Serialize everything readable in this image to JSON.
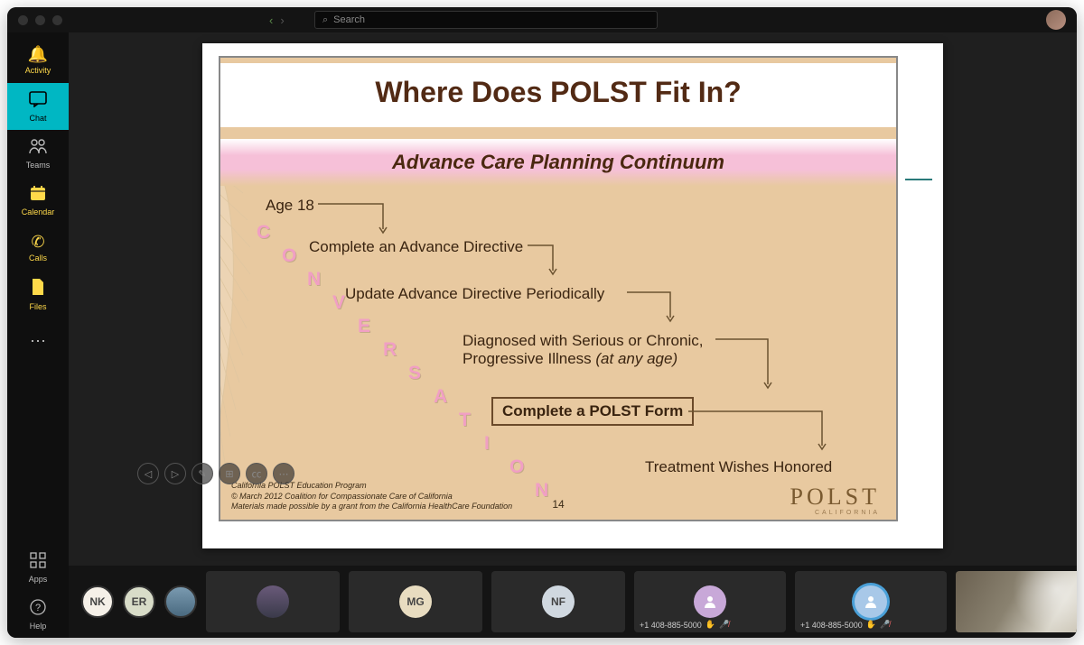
{
  "search": {
    "placeholder": "Search"
  },
  "rail": {
    "items": [
      {
        "name": "activity",
        "label": "Activity",
        "icon": "🔔",
        "highlight": true
      },
      {
        "name": "chat",
        "label": "Chat",
        "icon": "💬",
        "active": true
      },
      {
        "name": "teams",
        "label": "Teams",
        "icon": "👥"
      },
      {
        "name": "calendar",
        "label": "Calendar",
        "icon": "📅"
      },
      {
        "name": "calls",
        "label": "Calls",
        "icon": "📞"
      },
      {
        "name": "files",
        "label": "Files",
        "icon": "📄"
      },
      {
        "name": "more",
        "label": "",
        "icon": "⋯"
      }
    ],
    "bottom": [
      {
        "name": "apps",
        "label": "Apps",
        "icon": "⊞"
      },
      {
        "name": "help",
        "label": "Help",
        "icon": "?"
      }
    ]
  },
  "slide": {
    "title": "Where Does POLST Fit In?",
    "subtitle": "Advance Care Planning Continuum",
    "steps": {
      "s1": "Age 18",
      "s2": "Complete an Advance Directive",
      "s3": "Update Advance Directive Periodically",
      "s4a": "Diagnosed with Serious or Chronic,",
      "s4b": "Progressive Illness ",
      "s4c": "(at any age)",
      "s5": "Complete a POLST Form",
      "s6": "Treatment Wishes Honored"
    },
    "conversation_letters": [
      "C",
      "O",
      "N",
      "V",
      "E",
      "R",
      "S",
      "A",
      "T",
      "I",
      "O",
      "N"
    ],
    "footer": {
      "l1": "California POLST Education Program",
      "l2": "© March 2012 Coalition for Compassionate Care of California",
      "l3": "Materials made possible by a grant from the California HealthCare Foundation"
    },
    "number": "14",
    "brand": "POLST",
    "brand_sub": "CALIFORNIA",
    "colors": {
      "title": "#522a14",
      "body_bg": "#e8c9a0",
      "pink": "#f6c0d8",
      "conv_letter": "#f19fc4",
      "text": "#3a2410"
    }
  },
  "participants": {
    "cluster": [
      {
        "initials": "NK",
        "bg": "#f5f0e8"
      },
      {
        "initials": "ER",
        "bg": "#d8dcc8"
      },
      {
        "initials": "",
        "bg": "#6a8a9a",
        "photo": true
      }
    ],
    "tiles": [
      {
        "type": "photo",
        "label": "",
        "bg": "#3a4a5a"
      },
      {
        "type": "initials",
        "label": "MG",
        "bg": "#e8dcc0"
      },
      {
        "type": "initials",
        "label": "NF",
        "bg": "#d0d8e0"
      },
      {
        "type": "phone",
        "label": "",
        "phone": "+1 408-885-5000",
        "bg": "#c8a8d8",
        "muted": true
      },
      {
        "type": "phone",
        "label": "",
        "phone": "+1 408-885-5000",
        "bg": "#a8c8e8",
        "ring": "#4aa0d8",
        "muted": true
      }
    ]
  }
}
